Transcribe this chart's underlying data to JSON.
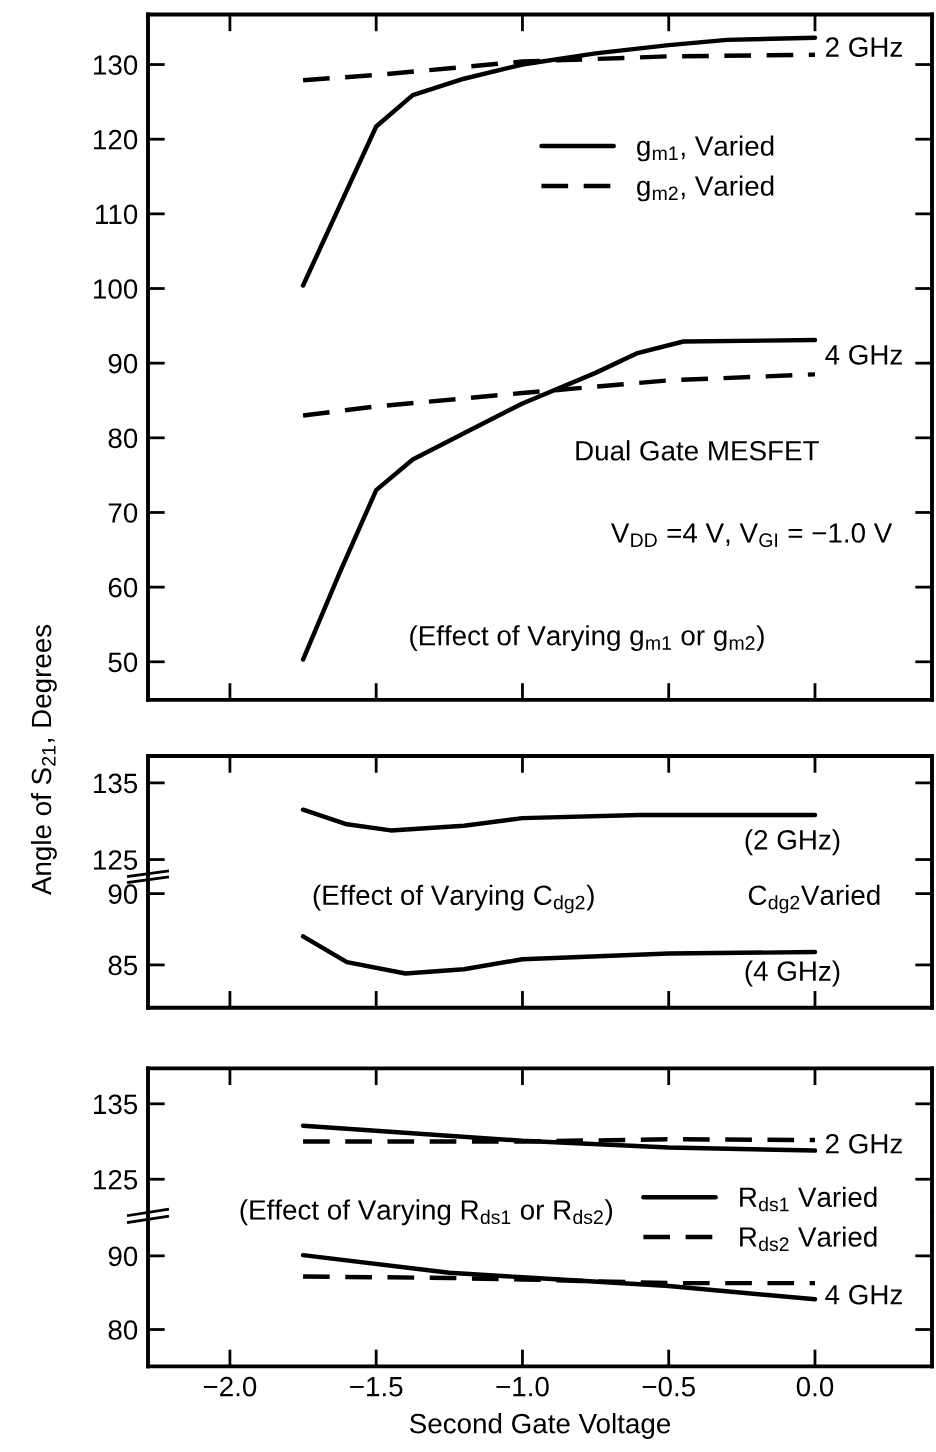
{
  "chart_data": [
    {
      "type": "line",
      "ylabel": "Angle of S$_{21}$, Degrees",
      "xlim": [
        -2.28,
        0.4
      ],
      "xticks": [
        {
          "value": -2.0,
          "label": null
        },
        {
          "value": -1.5,
          "label": null
        },
        {
          "value": -1.0,
          "label": null
        },
        {
          "value": -0.5,
          "label": null
        },
        {
          "value": 0.0,
          "label": null
        }
      ],
      "ylim": [
        44.9,
        136.7
      ],
      "yticks": [
        50,
        60,
        70,
        80,
        90,
        100,
        110,
        120,
        130
      ],
      "tick_labels": "y",
      "legend": "top right",
      "series": [
        {
          "name": "g$_{m1}$, Varied",
          "color": "#000000",
          "line_style": "solid",
          "x": [
            -1.75,
            -1.5,
            -1.375,
            -1.2,
            -1.0,
            -0.75,
            -0.5,
            -0.3,
            0.0
          ],
          "values": [
            100.4,
            121.7,
            125.9,
            128.1,
            130.0,
            131.5,
            132.6,
            133.3,
            133.6
          ]
        },
        {
          "name": "g$_{m2}$, Varied",
          "color": "#000000",
          "line_style": "dashed",
          "x": [
            -1.75,
            -1.5,
            -1.0,
            -0.5,
            0.0
          ],
          "values": [
            127.9,
            128.6,
            130.4,
            131.1,
            131.3
          ]
        },
        {
          "color": "#000000",
          "line_style": "solid",
          "x": [
            -1.75,
            -1.625,
            -1.5,
            -1.375,
            -1.2,
            -1.0,
            -0.75,
            -0.61,
            -0.45,
            0.0
          ],
          "values": [
            50.3,
            61.9,
            73.0,
            77.1,
            80.6,
            84.6,
            88.7,
            91.3,
            92.9,
            93.1
          ]
        },
        {
          "color": "#000000",
          "line_style": "dashed",
          "x": [
            -1.75,
            -1.5,
            -1.0,
            -0.5,
            0.0
          ],
          "values": [
            83.0,
            84.2,
            86.0,
            87.7,
            88.5
          ]
        }
      ],
      "annotations": [
        "2 GHz",
        "4 GHz",
        "Dual Gate MESFET",
        "V$_{DD}$ =4 V, V$_{GI}$ = −1.0 V",
        "(Effect of Varying g$_{m1}$ or g$_{m2}$)"
      ]
    },
    {
      "type": "line",
      "xlim": [
        -2.28,
        0.4
      ],
      "xticks": [
        {
          "value": -2.0,
          "label": null
        },
        {
          "value": -1.5,
          "label": null
        },
        {
          "value": -1.0,
          "label": null
        },
        {
          "value": -0.5,
          "label": null
        },
        {
          "value": 0.0,
          "label": null
        }
      ],
      "ylim": [
        123.1,
        138.5
      ],
      "yticks": [
        125,
        135
      ],
      "tick_labels": "y",
      "series": [
        {
          "color": "#000000",
          "line_style": "solid",
          "x": [
            -1.75,
            -1.6,
            -1.45,
            -1.2,
            -1.0,
            -0.6,
            0.0
          ],
          "values": [
            131.5,
            129.6,
            128.8,
            129.4,
            130.4,
            130.8,
            130.8
          ]
        }
      ],
      "annotations": [
        "(2 GHz)"
      ]
    },
    {
      "type": "line",
      "xlim": [
        -2.28,
        0.4
      ],
      "xticks": [
        {
          "value": -2.0,
          "label": null
        },
        {
          "value": -1.5,
          "label": null
        },
        {
          "value": -1.0,
          "label": null
        },
        {
          "value": -0.5,
          "label": null
        },
        {
          "value": 0.0,
          "label": null
        }
      ],
      "ylim": [
        82.0,
        91.4
      ],
      "yticks": [
        85,
        90
      ],
      "tick_labels": "y",
      "series": [
        {
          "color": "#000000",
          "line_style": "solid",
          "x": [
            -1.75,
            -1.6,
            -1.4,
            -1.2,
            -1.0,
            -0.5,
            0.0
          ],
          "values": [
            87.0,
            85.2,
            84.4,
            84.7,
            85.4,
            85.8,
            85.9
          ]
        }
      ],
      "annotations": [
        "(4 GHz)",
        "(Effect of Varying C$_{dg2}$)",
        "C$_{dg2}$Varied"
      ]
    },
    {
      "type": "line",
      "xlim": [
        -2.28,
        0.4
      ],
      "xticks": [
        {
          "value": -2.0,
          "label": null
        },
        {
          "value": -1.5,
          "label": null
        },
        {
          "value": -1.0,
          "label": null
        },
        {
          "value": -0.5,
          "label": null
        },
        {
          "value": 0.0,
          "label": null
        }
      ],
      "ylim": [
        120.6,
        139.7
      ],
      "yticks": [
        125,
        135
      ],
      "tick_labels": "y",
      "legend": "right",
      "series": [
        {
          "name": "R$_{ds1}$ Varied",
          "color": "#000000",
          "line_style": "solid",
          "x": [
            -1.75,
            -1.0,
            -0.5,
            0.0
          ],
          "values": [
            132.1,
            130.1,
            129.2,
            128.8
          ]
        },
        {
          "name": "R$_{ds2}$ Varied",
          "color": "#000000",
          "line_style": "dashed",
          "x": [
            -1.75,
            -1.0,
            -0.5,
            0.0
          ],
          "values": [
            130.0,
            130.0,
            130.3,
            130.2
          ]
        }
      ],
      "annotations": [
        "2 GHz"
      ]
    },
    {
      "type": "line",
      "xlabel": "Second Gate Voltage",
      "xlim": [
        -2.28,
        0.4
      ],
      "xticks": [
        {
          "value": -2.0,
          "label": "−2.0"
        },
        {
          "value": -1.5,
          "label": "−1.5"
        },
        {
          "value": -1.0,
          "label": "−1.0"
        },
        {
          "value": -0.5,
          "label": "−0.5"
        },
        {
          "value": 0.0,
          "label": "0.0"
        }
      ],
      "ylim": [
        75.0,
        95.9
      ],
      "yticks": [
        80,
        90
      ],
      "series": [
        {
          "color": "#000000",
          "line_style": "solid",
          "x": [
            -1.75,
            -1.25,
            -1.0,
            -0.5,
            0.0
          ],
          "values": [
            90.1,
            87.7,
            87.1,
            85.9,
            84.1
          ]
        },
        {
          "color": "#000000",
          "line_style": "dashed",
          "x": [
            -1.75,
            -1.25,
            -1.0,
            -0.5,
            0.0
          ],
          "values": [
            87.2,
            87.0,
            86.8,
            86.3,
            86.3
          ]
        }
      ],
      "annotations": [
        "4 GHz",
        "(Effect of Varying R$_{ds1}$ or R$_{ds2}$)"
      ]
    }
  ]
}
